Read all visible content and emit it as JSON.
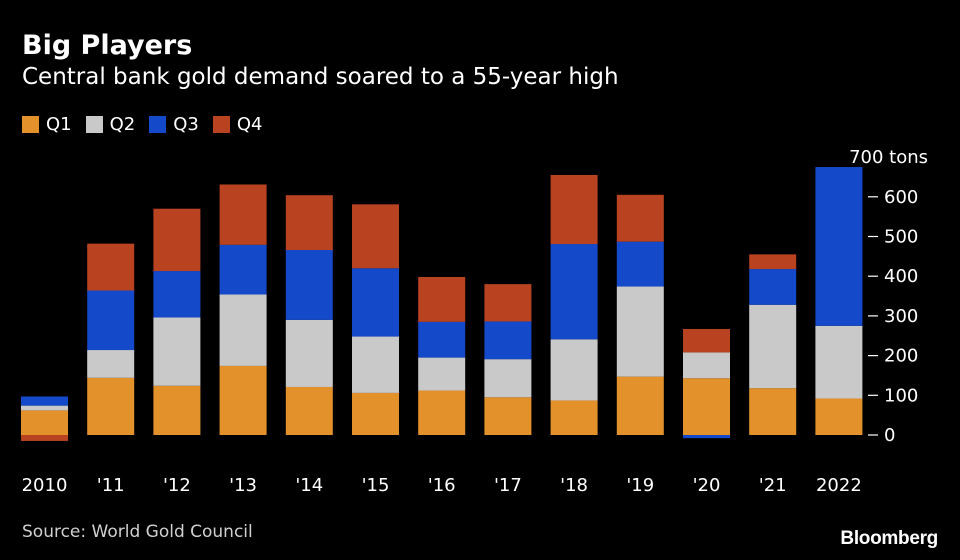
{
  "header": {
    "title": "Big Players",
    "subtitle": "Central bank gold demand soared to a 55-year high"
  },
  "footer": {
    "source": "Source: World Gold Council",
    "brand": "Bloomberg"
  },
  "chart_data": {
    "type": "bar",
    "stacked": true,
    "title": "Big Players",
    "subtitle": "Central bank gold demand soared to a 55-year high",
    "categories": [
      "2010",
      "'11",
      "'12",
      "'13",
      "'14",
      "'15",
      "'16",
      "'17",
      "'18",
      "'19",
      "'20",
      "'21",
      "2022"
    ],
    "series": [
      {
        "name": "Q1",
        "color": "#e3922b",
        "values": [
          62,
          144,
          124,
          174,
          121,
          106,
          112,
          95,
          87,
          147,
          143,
          118,
          92
        ]
      },
      {
        "name": "Q2",
        "color": "#c9c9c9",
        "values": [
          12,
          70,
          172,
          180,
          169,
          142,
          83,
          96,
          154,
          227,
          65,
          210,
          183
        ]
      },
      {
        "name": "Q3",
        "color": "#1449c9",
        "values": [
          23,
          150,
          117,
          125,
          176,
          172,
          90,
          95,
          240,
          113,
          -8,
          90,
          400
        ]
      },
      {
        "name": "Q4",
        "color": "#b94321",
        "values": [
          -15,
          118,
          157,
          152,
          138,
          161,
          113,
          94,
          174,
          118,
          59,
          37,
          0
        ]
      }
    ],
    "ylabel": "tons",
    "ylim": [
      -15,
      700
    ],
    "yticks": [
      0,
      100,
      200,
      300,
      400,
      500,
      600,
      700
    ],
    "ytick_labels": [
      "0",
      "100",
      "200",
      "300",
      "400",
      "500",
      "600",
      "700 tons"
    ],
    "legend_position": "top-left",
    "grid": false
  }
}
